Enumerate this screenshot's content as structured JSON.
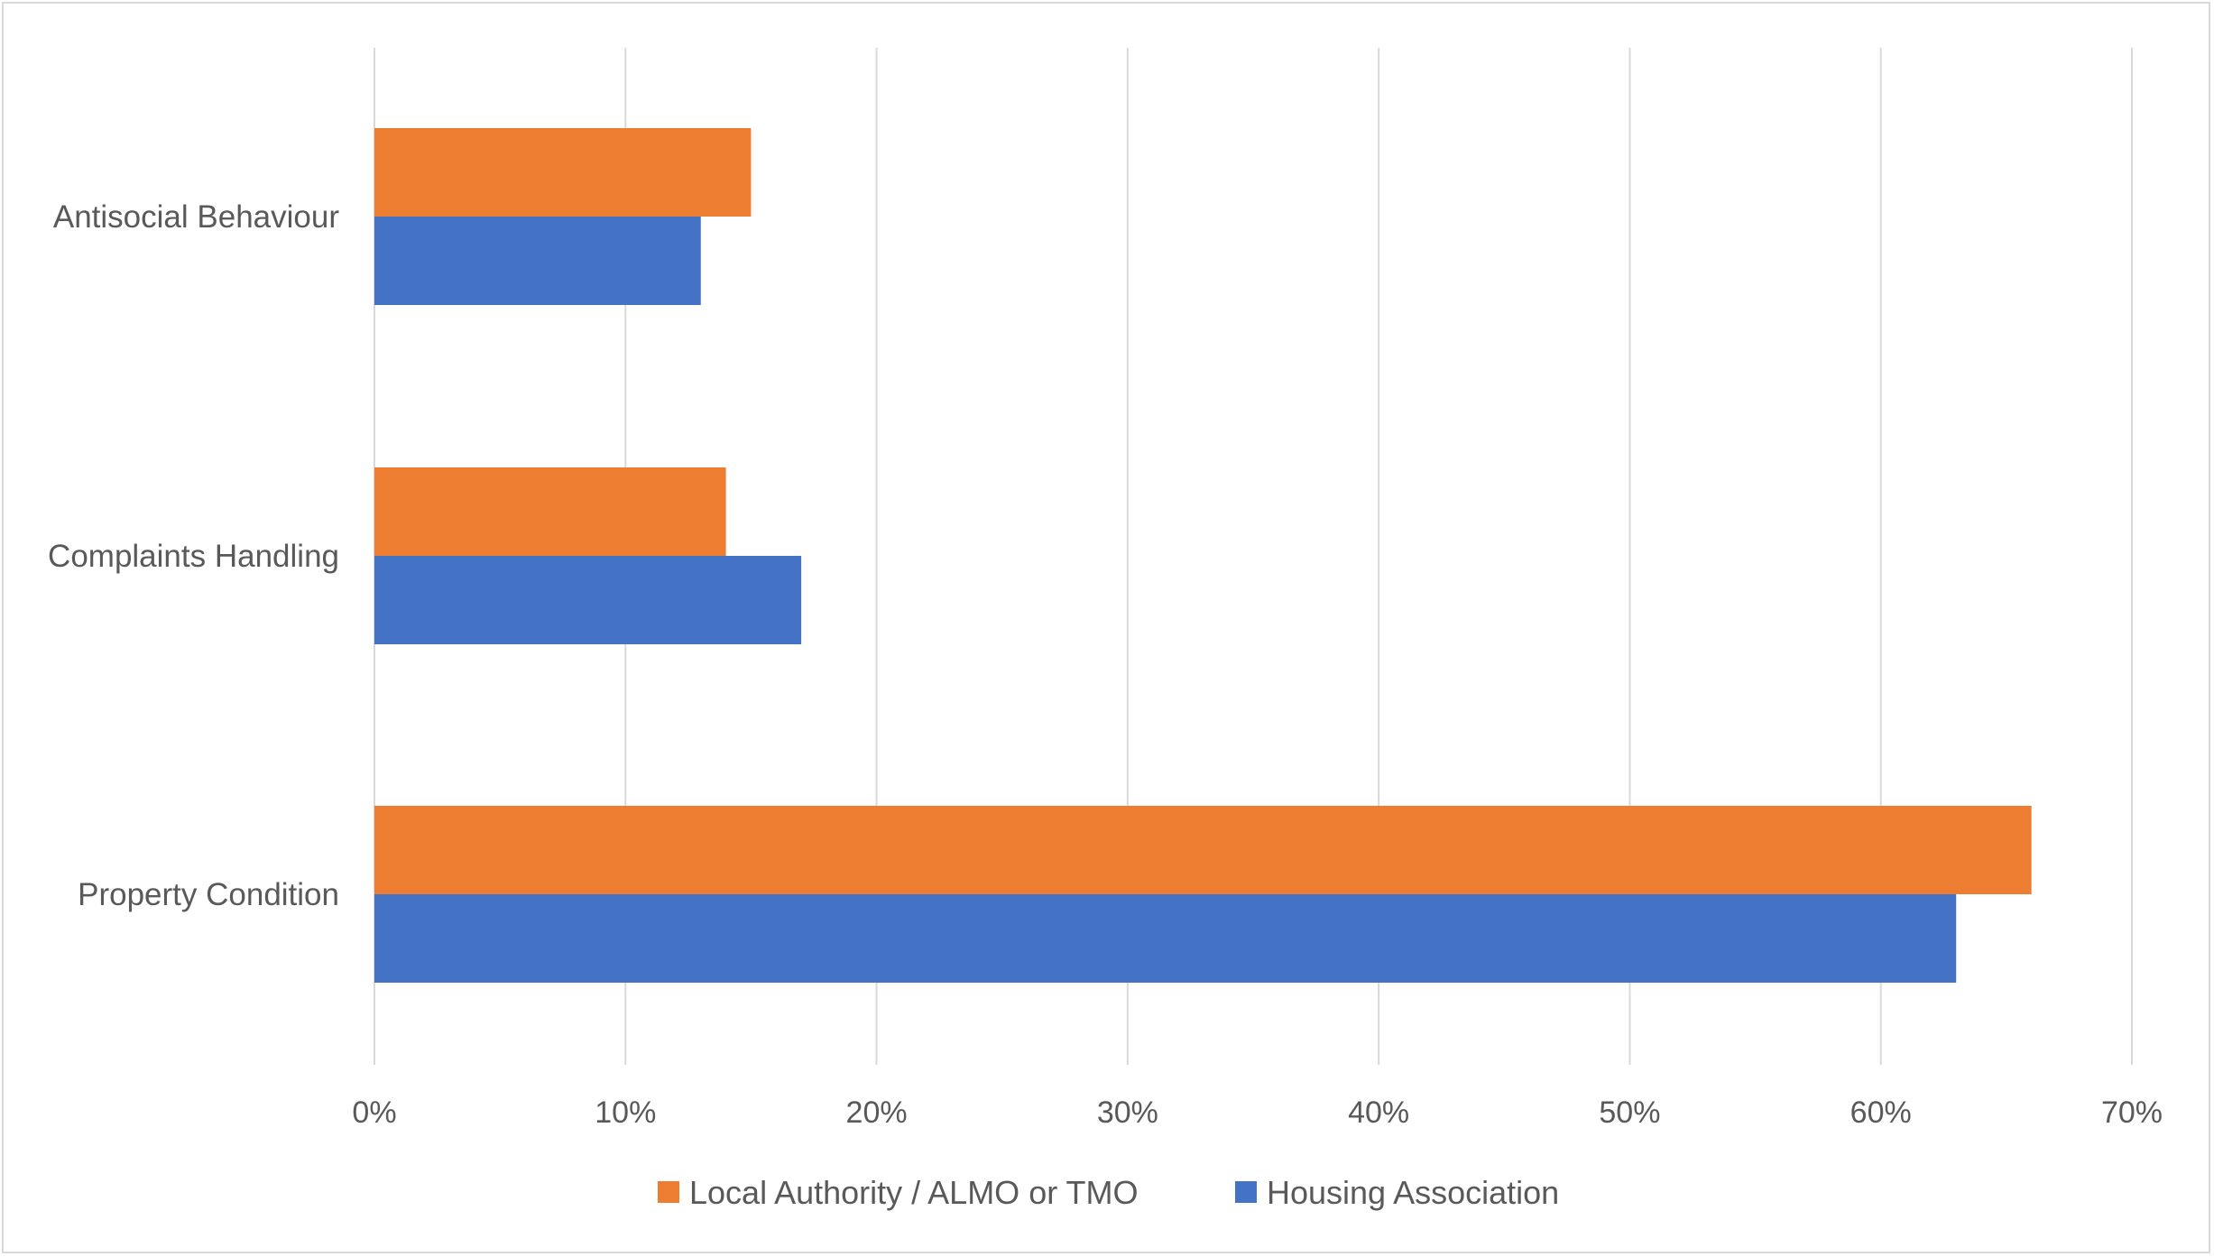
{
  "chart_data": {
    "type": "bar",
    "orientation": "horizontal",
    "categories": [
      "Antisocial Behaviour",
      "Complaints Handling",
      "Property Condition"
    ],
    "series": [
      {
        "name": "Local Authority / ALMO or TMO",
        "values": [
          15,
          14,
          66
        ],
        "color": "#ED7D31"
      },
      {
        "name": "Housing Association",
        "values": [
          13,
          17,
          63
        ],
        "color": "#4472C4"
      }
    ],
    "xlim": [
      0,
      70
    ],
    "xticks": [
      0,
      10,
      20,
      30,
      40,
      50,
      60,
      70
    ],
    "tick_labels": [
      "0%",
      "10%",
      "20%",
      "30%",
      "40%",
      "50%",
      "60%",
      "70%"
    ],
    "unit": "%",
    "grid": true,
    "legend_position": "bottom",
    "title": "",
    "xlabel": "",
    "ylabel": ""
  },
  "colors": {
    "gridline": "#D9D9D9",
    "text": "#595959",
    "frame": "#D9D9D9"
  }
}
